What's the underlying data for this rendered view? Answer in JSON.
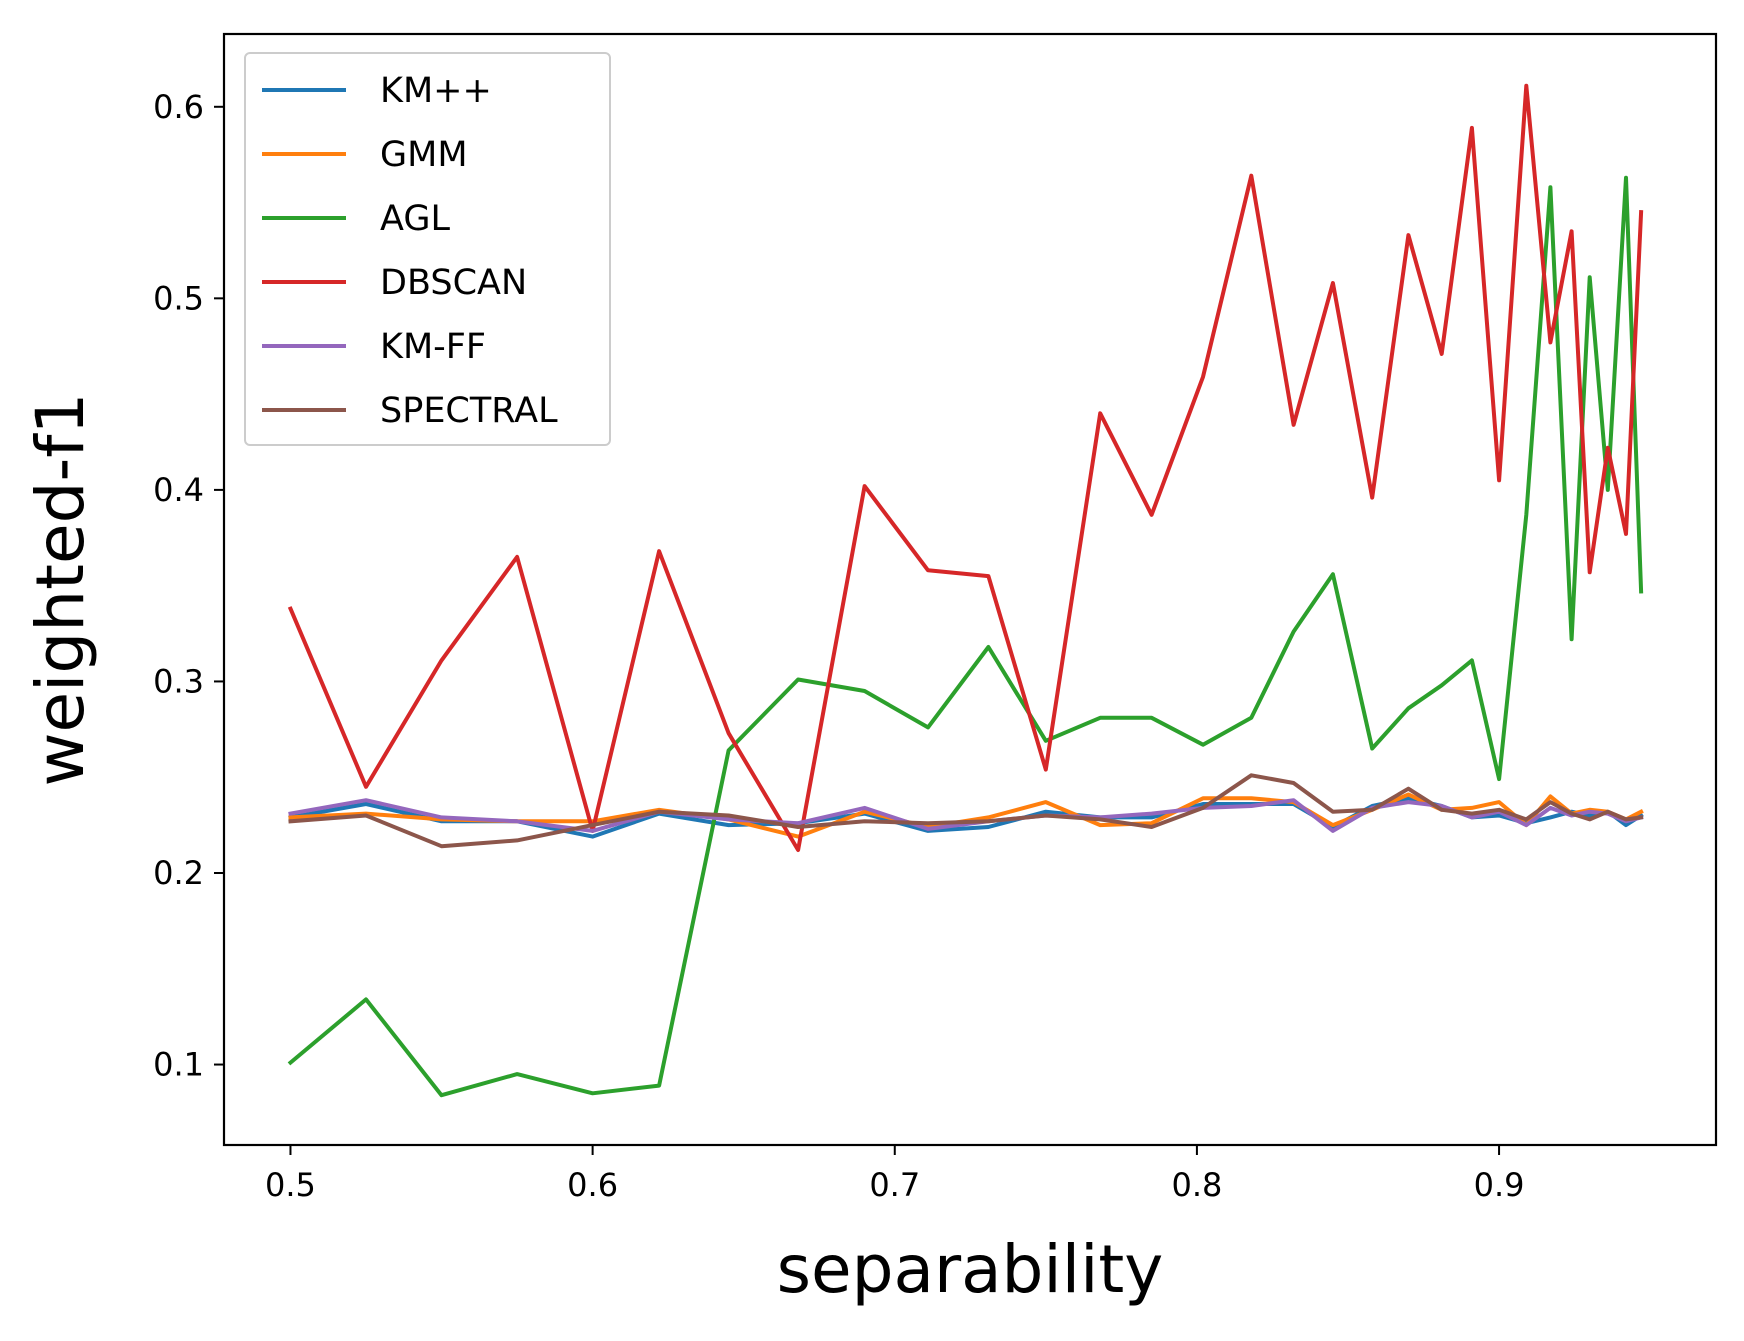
{
  "chart_data": {
    "type": "line",
    "title": "",
    "xlabel": "separability",
    "ylabel": "weighted-f1",
    "xlim": [
      0.478,
      0.9718
    ],
    "ylim": [
      0.058,
      0.638
    ],
    "xticks": [
      0.5,
      0.6,
      0.7,
      0.8,
      0.9
    ],
    "xtick_labels": [
      "0.5",
      "0.6",
      "0.7",
      "0.8",
      "0.9"
    ],
    "yticks": [
      0.1,
      0.2,
      0.3,
      0.4,
      0.5,
      0.6
    ],
    "ytick_labels": [
      "0.1",
      "0.2",
      "0.3",
      "0.4",
      "0.5",
      "0.6"
    ],
    "grid": false,
    "legend_position": "top-left",
    "colors": {
      "KM++": "#1f77b4",
      "GMM": "#ff7f0e",
      "AGL": "#2ca02c",
      "DBSCAN": "#d62728",
      "KM-FF": "#9467bd",
      "SPECTRAL": "#8c564b"
    },
    "series": [
      {
        "name": "KM++",
        "x": [
          0.5,
          0.525,
          0.55,
          0.575,
          0.6,
          0.622,
          0.645,
          0.668,
          0.69,
          0.711,
          0.731,
          0.75,
          0.768,
          0.785,
          0.802,
          0.818,
          0.832,
          0.845,
          0.858,
          0.87,
          0.881,
          0.891,
          0.9,
          0.909,
          0.917,
          0.924,
          0.93,
          0.936,
          0.942,
          0.947
        ],
        "y": [
          0.229,
          0.236,
          0.227,
          0.227,
          0.219,
          0.231,
          0.225,
          0.226,
          0.231,
          0.222,
          0.224,
          0.232,
          0.229,
          0.229,
          0.236,
          0.236,
          0.236,
          0.224,
          0.235,
          0.239,
          0.235,
          0.229,
          0.23,
          0.226,
          0.229,
          0.232,
          0.23,
          0.232,
          0.225,
          0.23
        ]
      },
      {
        "name": "GMM",
        "x": [
          0.5,
          0.525,
          0.55,
          0.575,
          0.6,
          0.622,
          0.645,
          0.668,
          0.69,
          0.711,
          0.731,
          0.75,
          0.768,
          0.785,
          0.802,
          0.818,
          0.832,
          0.845,
          0.858,
          0.87,
          0.881,
          0.891,
          0.9,
          0.909,
          0.917,
          0.924,
          0.93,
          0.936,
          0.942,
          0.947
        ],
        "y": [
          0.229,
          0.231,
          0.228,
          0.227,
          0.227,
          0.233,
          0.228,
          0.219,
          0.232,
          0.224,
          0.229,
          0.237,
          0.225,
          0.226,
          0.239,
          0.239,
          0.237,
          0.225,
          0.233,
          0.241,
          0.233,
          0.234,
          0.237,
          0.225,
          0.24,
          0.231,
          0.233,
          0.232,
          0.228,
          0.232
        ]
      },
      {
        "name": "AGL",
        "x": [
          0.5,
          0.525,
          0.55,
          0.575,
          0.6,
          0.622,
          0.645,
          0.668,
          0.69,
          0.711,
          0.731,
          0.75,
          0.768,
          0.785,
          0.802,
          0.818,
          0.832,
          0.845,
          0.858,
          0.87,
          0.881,
          0.891,
          0.9,
          0.909,
          0.917,
          0.924,
          0.93,
          0.936,
          0.942,
          0.947
        ],
        "y": [
          0.101,
          0.134,
          0.084,
          0.095,
          0.085,
          0.089,
          0.264,
          0.301,
          0.295,
          0.276,
          0.318,
          0.269,
          0.281,
          0.281,
          0.267,
          0.281,
          0.326,
          0.356,
          0.265,
          0.286,
          0.298,
          0.311,
          0.249,
          0.387,
          0.558,
          0.322,
          0.511,
          0.4,
          0.563,
          0.347
        ]
      },
      {
        "name": "DBSCAN",
        "x": [
          0.5,
          0.525,
          0.55,
          0.575,
          0.6,
          0.622,
          0.645,
          0.668,
          0.69,
          0.711,
          0.731,
          0.75,
          0.768,
          0.785,
          0.802,
          0.818,
          0.832,
          0.845,
          0.858,
          0.87,
          0.881,
          0.891,
          0.9,
          0.909,
          0.917,
          0.924,
          0.93,
          0.936,
          0.942,
          0.947
        ],
        "y": [
          0.338,
          0.245,
          0.311,
          0.365,
          0.222,
          0.368,
          0.273,
          0.212,
          0.402,
          0.358,
          0.355,
          0.254,
          0.44,
          0.387,
          0.459,
          0.564,
          0.434,
          0.508,
          0.396,
          0.533,
          0.471,
          0.589,
          0.405,
          0.611,
          0.477,
          0.535,
          0.357,
          0.422,
          0.377,
          0.545
        ]
      },
      {
        "name": "KM-FF",
        "x": [
          0.5,
          0.525,
          0.55,
          0.575,
          0.6,
          0.622,
          0.645,
          0.668,
          0.69,
          0.711,
          0.731,
          0.75,
          0.768,
          0.785,
          0.802,
          0.818,
          0.832,
          0.845,
          0.858,
          0.87,
          0.881,
          0.891,
          0.9,
          0.909,
          0.917,
          0.924,
          0.93,
          0.936,
          0.942,
          0.947
        ],
        "y": [
          0.231,
          0.238,
          0.229,
          0.227,
          0.222,
          0.232,
          0.228,
          0.226,
          0.234,
          0.223,
          0.227,
          0.23,
          0.229,
          0.231,
          0.234,
          0.235,
          0.238,
          0.222,
          0.234,
          0.237,
          0.235,
          0.229,
          0.232,
          0.225,
          0.234,
          0.23,
          0.232,
          0.231,
          0.227,
          0.229
        ]
      },
      {
        "name": "SPECTRAL",
        "x": [
          0.5,
          0.525,
          0.55,
          0.575,
          0.6,
          0.622,
          0.645,
          0.668,
          0.69,
          0.711,
          0.731,
          0.75,
          0.768,
          0.785,
          0.802,
          0.818,
          0.832,
          0.845,
          0.858,
          0.87,
          0.881,
          0.891,
          0.9,
          0.909,
          0.917,
          0.924,
          0.93,
          0.936,
          0.942,
          0.947
        ],
        "y": [
          0.227,
          0.23,
          0.214,
          0.217,
          0.225,
          0.232,
          0.23,
          0.224,
          0.227,
          0.226,
          0.227,
          0.23,
          0.228,
          0.224,
          0.234,
          0.251,
          0.247,
          0.232,
          0.233,
          0.244,
          0.233,
          0.231,
          0.233,
          0.228,
          0.237,
          0.231,
          0.228,
          0.232,
          0.228,
          0.229
        ]
      }
    ]
  }
}
